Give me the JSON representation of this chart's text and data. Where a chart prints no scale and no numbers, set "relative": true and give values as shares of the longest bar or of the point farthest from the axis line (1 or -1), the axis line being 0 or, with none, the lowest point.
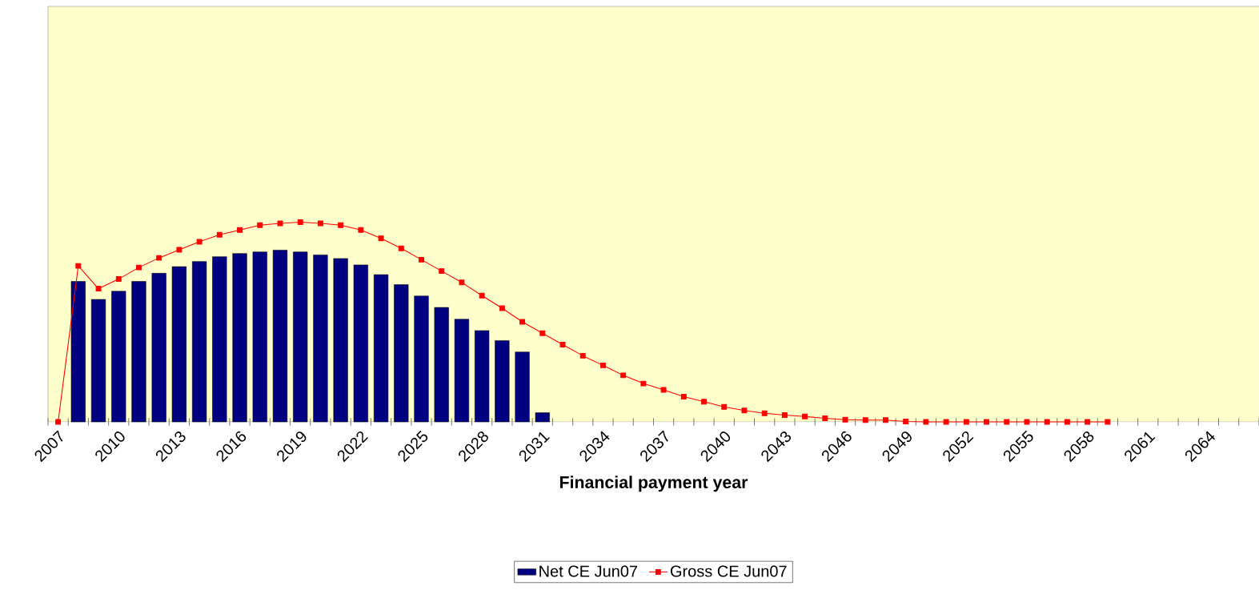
{
  "chart_data": {
    "type": "bar",
    "relative": true,
    "xlabel": "Financial payment year",
    "categories": [
      "2007",
      null,
      null,
      "2010",
      null,
      null,
      "2013",
      null,
      null,
      "2016",
      null,
      null,
      "2019",
      null,
      null,
      "2022",
      null,
      null,
      "2025",
      null,
      null,
      "2028",
      null,
      null,
      "2031",
      null,
      null,
      "2034",
      null,
      null,
      "2037",
      null,
      null,
      "2040",
      null,
      null,
      "2043",
      null,
      null,
      "2046",
      null,
      null,
      "2049",
      null,
      null,
      "2052",
      null,
      null,
      "2055",
      null,
      null,
      "2058",
      null,
      null,
      "2061",
      null,
      null,
      "2064",
      null,
      null
    ],
    "series": [
      {
        "name": "Net CE Jun07",
        "color": "#000080",
        "values": [
          null,
          0.703,
          0.613,
          0.654,
          0.703,
          0.744,
          0.777,
          0.803,
          0.827,
          0.843,
          0.851,
          0.86,
          0.851,
          0.836,
          0.818,
          0.786,
          0.737,
          0.687,
          0.63,
          0.573,
          0.514,
          0.457,
          0.407,
          0.35,
          0.046,
          null,
          null,
          null,
          null,
          null,
          null,
          null,
          null,
          null,
          null,
          null,
          null,
          null,
          null,
          null,
          null,
          null,
          null,
          null,
          null,
          null,
          null,
          null,
          null,
          null,
          null,
          null,
          null,
          null,
          null,
          null,
          null,
          null,
          null,
          null
        ]
      },
      {
        "name": "Gross CE Jun07",
        "type": "line",
        "marker": "square",
        "color": "#ff0000",
        "values": [
          0,
          0.781,
          0.667,
          0.715,
          0.773,
          0.821,
          0.862,
          0.902,
          0.937,
          0.961,
          0.985,
          0.994,
          1,
          0.994,
          0.985,
          0.961,
          0.919,
          0.869,
          0.812,
          0.755,
          0.698,
          0.632,
          0.569,
          0.501,
          0.444,
          0.387,
          0.331,
          0.283,
          0.233,
          0.192,
          0.16,
          0.126,
          0.101,
          0.075,
          0.057,
          0.043,
          0.034,
          0.027,
          0.018,
          0.011,
          0.009,
          0.009,
          0.002,
          0,
          0,
          0,
          0,
          0,
          0,
          0,
          0,
          0,
          0,
          null,
          null,
          null,
          null,
          null,
          null,
          null
        ]
      }
    ],
    "legend": "bottom"
  }
}
